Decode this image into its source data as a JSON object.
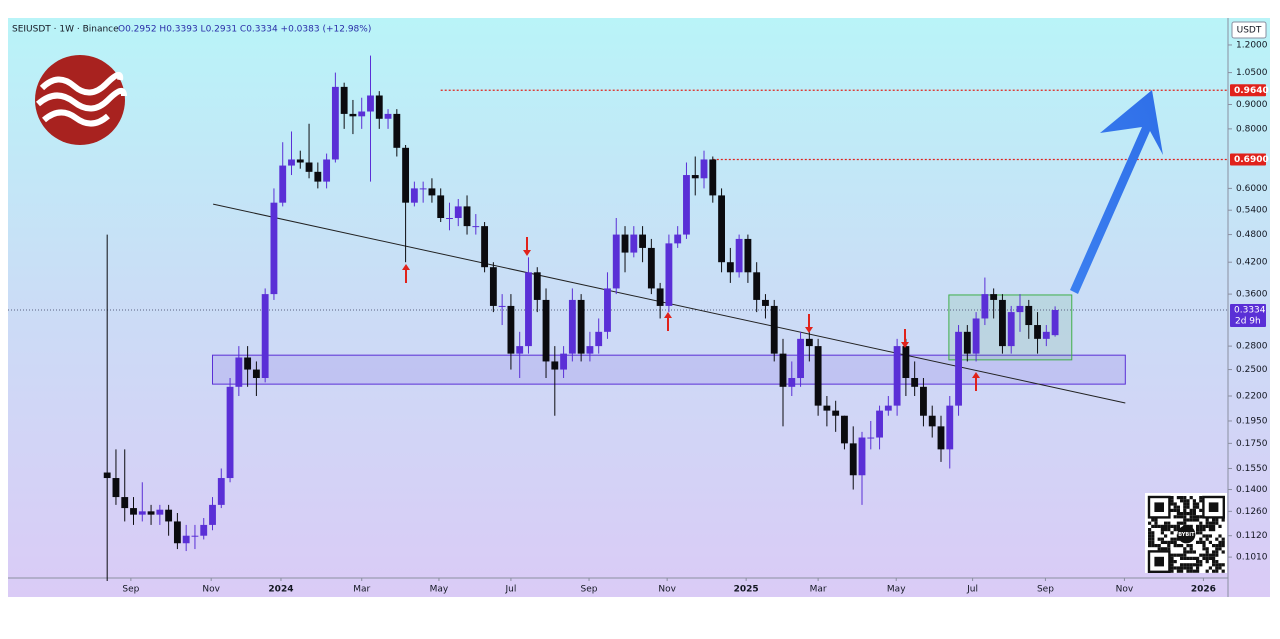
{
  "chart_data": {
    "type": "candlestick",
    "title": "SEIUSDT · 1W · Binance",
    "ohlc_text": "O0.2952 H0.3393 L0.2931 C0.3334 +0.0383 (+12.98%)",
    "unit": "USDT",
    "qr_text": "BYBIT",
    "up_color": "#5a2fd6",
    "down_color": "#0b0b0f",
    "log_scale": true,
    "open": [
      0.152,
      0.148,
      0.135,
      0.128,
      0.124,
      0.126,
      0.124,
      0.127,
      0.12,
      0.108,
      0.112,
      0.112,
      0.118,
      0.13,
      0.148,
      0.23,
      0.265,
      0.25,
      0.24,
      0.36,
      0.56,
      0.67,
      0.69,
      0.68,
      0.65,
      0.62,
      0.69,
      0.98,
      0.86,
      0.85,
      0.87,
      0.94,
      0.84,
      0.86,
      0.73,
      0.56,
      0.6,
      0.6,
      0.58,
      0.52,
      0.52,
      0.55,
      0.5,
      0.5,
      0.41,
      0.34,
      0.34,
      0.27,
      0.28,
      0.4,
      0.35,
      0.26,
      0.25,
      0.27,
      0.35,
      0.27,
      0.28,
      0.3,
      0.37,
      0.48,
      0.44,
      0.48,
      0.45,
      0.37,
      0.34,
      0.46,
      0.48,
      0.64,
      0.63,
      0.69,
      0.58,
      0.42,
      0.4,
      0.47,
      0.4,
      0.35,
      0.34,
      0.27,
      0.23,
      0.24,
      0.29,
      0.28,
      0.21,
      0.205,
      0.2,
      0.175,
      0.15,
      0.18,
      0.18,
      0.205,
      0.21,
      0.28,
      0.24,
      0.23,
      0.2,
      0.19,
      0.17,
      0.21,
      0.3,
      0.27,
      0.32,
      0.36,
      0.35,
      0.28,
      0.33,
      0.34,
      0.31,
      0.29,
      0.2952
    ],
    "high": [
      0.48,
      0.17,
      0.17,
      0.135,
      0.145,
      0.13,
      0.13,
      0.13,
      0.125,
      0.118,
      0.118,
      0.122,
      0.135,
      0.155,
      0.24,
      0.28,
      0.28,
      0.26,
      0.37,
      0.6,
      0.75,
      0.79,
      0.72,
      0.82,
      0.68,
      0.71,
      1.05,
      1.0,
      0.92,
      0.93,
      1.14,
      0.96,
      0.88,
      0.88,
      0.74,
      0.62,
      0.62,
      0.63,
      0.6,
      0.56,
      0.57,
      0.58,
      0.53,
      0.51,
      0.42,
      0.36,
      0.36,
      0.3,
      0.43,
      0.41,
      0.37,
      0.28,
      0.28,
      0.37,
      0.36,
      0.3,
      0.32,
      0.4,
      0.52,
      0.5,
      0.5,
      0.5,
      0.47,
      0.38,
      0.48,
      0.5,
      0.68,
      0.7,
      0.72,
      0.7,
      0.6,
      0.45,
      0.48,
      0.48,
      0.42,
      0.36,
      0.35,
      0.29,
      0.26,
      0.3,
      0.3,
      0.29,
      0.22,
      0.215,
      0.2,
      0.19,
      0.185,
      0.195,
      0.21,
      0.22,
      0.29,
      0.29,
      0.26,
      0.24,
      0.21,
      0.2,
      0.22,
      0.31,
      0.31,
      0.33,
      0.39,
      0.37,
      0.36,
      0.34,
      0.36,
      0.35,
      0.33,
      0.31,
      0.3393
    ],
    "low": [
      0.09,
      0.13,
      0.12,
      0.118,
      0.12,
      0.118,
      0.118,
      0.112,
      0.105,
      0.104,
      0.105,
      0.11,
      0.115,
      0.128,
      0.145,
      0.22,
      0.23,
      0.22,
      0.235,
      0.35,
      0.55,
      0.64,
      0.66,
      0.63,
      0.6,
      0.6,
      0.68,
      0.8,
      0.78,
      0.8,
      0.62,
      0.8,
      0.8,
      0.7,
      0.42,
      0.55,
      0.56,
      0.56,
      0.51,
      0.49,
      0.5,
      0.48,
      0.48,
      0.4,
      0.33,
      0.31,
      0.25,
      0.24,
      0.27,
      0.33,
      0.24,
      0.2,
      0.24,
      0.26,
      0.26,
      0.26,
      0.27,
      0.29,
      0.36,
      0.4,
      0.43,
      0.42,
      0.36,
      0.32,
      0.33,
      0.45,
      0.47,
      0.58,
      0.6,
      0.56,
      0.4,
      0.38,
      0.39,
      0.38,
      0.33,
      0.32,
      0.26,
      0.19,
      0.22,
      0.23,
      0.26,
      0.2,
      0.19,
      0.185,
      0.17,
      0.14,
      0.13,
      0.17,
      0.17,
      0.2,
      0.2,
      0.22,
      0.22,
      0.19,
      0.18,
      0.16,
      0.155,
      0.2,
      0.26,
      0.26,
      0.31,
      0.32,
      0.27,
      0.27,
      0.3,
      0.29,
      0.27,
      0.28,
      0.2931
    ],
    "close": [
      0.148,
      0.135,
      0.128,
      0.124,
      0.126,
      0.124,
      0.127,
      0.12,
      0.108,
      0.112,
      0.112,
      0.118,
      0.13,
      0.148,
      0.23,
      0.265,
      0.25,
      0.24,
      0.36,
      0.56,
      0.67,
      0.69,
      0.68,
      0.65,
      0.62,
      0.69,
      0.98,
      0.86,
      0.85,
      0.87,
      0.94,
      0.84,
      0.86,
      0.73,
      0.56,
      0.6,
      0.6,
      0.58,
      0.52,
      0.52,
      0.55,
      0.5,
      0.5,
      0.41,
      0.34,
      0.34,
      0.27,
      0.28,
      0.4,
      0.35,
      0.26,
      0.25,
      0.27,
      0.35,
      0.27,
      0.28,
      0.3,
      0.37,
      0.48,
      0.44,
      0.48,
      0.45,
      0.37,
      0.34,
      0.46,
      0.48,
      0.64,
      0.63,
      0.69,
      0.58,
      0.42,
      0.4,
      0.47,
      0.4,
      0.35,
      0.34,
      0.27,
      0.23,
      0.24,
      0.29,
      0.28,
      0.21,
      0.205,
      0.2,
      0.175,
      0.15,
      0.18,
      0.18,
      0.205,
      0.21,
      0.28,
      0.24,
      0.23,
      0.2,
      0.19,
      0.17,
      0.21,
      0.3,
      0.27,
      0.32,
      0.36,
      0.35,
      0.28,
      0.33,
      0.34,
      0.31,
      0.29,
      0.3,
      0.3334
    ],
    "xlim": [
      -11.3,
      127.7
    ],
    "xticks": [
      {
        "value": 2.7,
        "label": "Sep"
      },
      {
        "value": 11.85,
        "label": "Nov"
      },
      {
        "value": 19.8,
        "label": "2024"
      },
      {
        "value": 29.0,
        "label": "Mar"
      },
      {
        "value": 37.8,
        "label": "May"
      },
      {
        "value": 46.0,
        "label": "Jul"
      },
      {
        "value": 54.9,
        "label": "Sep"
      },
      {
        "value": 63.8,
        "label": "Nov"
      },
      {
        "value": 72.8,
        "label": "2025"
      },
      {
        "value": 81.0,
        "label": "Mar"
      },
      {
        "value": 89.9,
        "label": "May"
      },
      {
        "value": 98.6,
        "label": "Jul"
      },
      {
        "value": 106.9,
        "label": "Sep"
      },
      {
        "value": 115.9,
        "label": "Nov"
      },
      {
        "value": 124.9,
        "label": "2026"
      }
    ],
    "ylim": [
      0.0913,
      1.367
    ],
    "yticks": [
      {
        "value": 1.2,
        "label": "1.2000"
      },
      {
        "value": 1.05,
        "label": "1.0500"
      },
      {
        "value": 0.9,
        "label": "0.9000"
      },
      {
        "value": 0.8,
        "label": "0.8000"
      },
      {
        "value": 0.6,
        "label": "0.6000"
      },
      {
        "value": 0.54,
        "label": "0.5400"
      },
      {
        "value": 0.48,
        "label": "0.4800"
      },
      {
        "value": 0.42,
        "label": "0.4200"
      },
      {
        "value": 0.36,
        "label": "0.3600"
      },
      {
        "value": 0.28,
        "label": "0.2800"
      },
      {
        "value": 0.25,
        "label": "0.2500"
      },
      {
        "value": 0.22,
        "label": "0.2200"
      },
      {
        "value": 0.195,
        "label": "0.1950"
      },
      {
        "value": 0.175,
        "label": "0.1750"
      },
      {
        "value": 0.155,
        "label": "0.1550"
      },
      {
        "value": 0.14,
        "label": "0.1400"
      },
      {
        "value": 0.126,
        "label": "0.1260"
      },
      {
        "value": 0.112,
        "label": "0.1120"
      },
      {
        "value": 0.101,
        "label": "0.1010"
      }
    ],
    "levels": [
      {
        "value": 0.964,
        "label": "0.9640",
        "color": "#e0221b",
        "start": 38.0
      },
      {
        "value": 0.69,
        "label": "0.6900",
        "color": "#e0221b",
        "start": 69.0
      }
    ],
    "last_price": {
      "value": 0.3334,
      "label": "0.3334",
      "countdown": "2d 9h",
      "color": "#5a2fd6"
    },
    "trendline": {
      "x": [
        12.07,
        116.0
      ],
      "y": [
        0.556,
        0.2127
      ],
      "color": "#222222"
    },
    "zones": [
      {
        "x": [
          12.0,
          116.0
        ],
        "y": [
          0.233,
          0.268
        ],
        "color": "#5a2fd6"
      },
      {
        "x": [
          95.9,
          109.9
        ],
        "y": [
          0.262,
          0.3585
        ],
        "color": "#3fae49"
      }
    ]
  }
}
